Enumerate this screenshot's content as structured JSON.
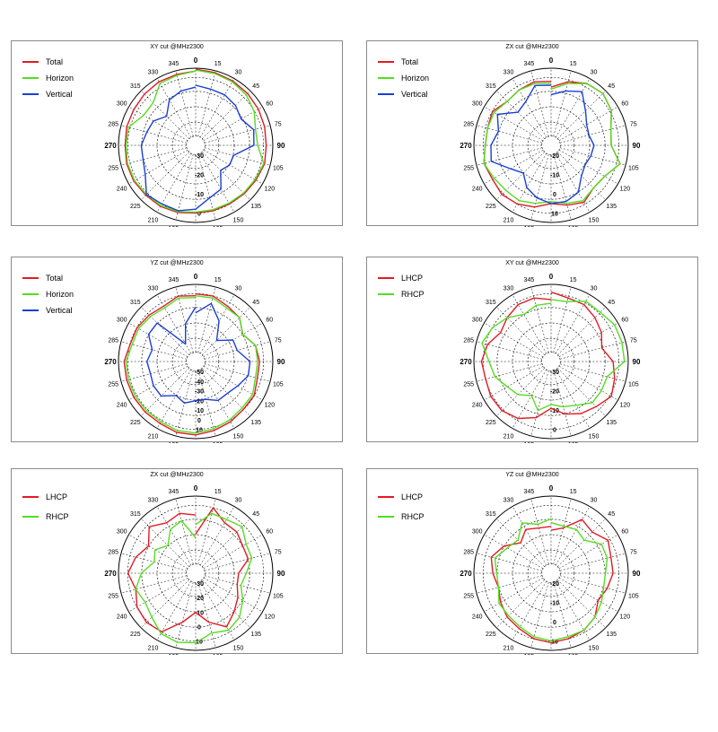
{
  "chart_data": [
    {
      "type": "polar",
      "title": "XY cut @MHz2300",
      "rings": [
        "-30",
        "-20",
        "-10",
        "0"
      ],
      "legend_position": "top-left",
      "series": [
        {
          "name": "Total",
          "color": "#e01b24",
          "values": [
            -0.5,
            -1,
            -1.5,
            -2,
            -2.5,
            -3,
            -3.5,
            -3,
            -4,
            -4.5,
            -5,
            -5,
            -5,
            -4,
            -3.5,
            -3.5,
            -3,
            -3,
            -3.5,
            -3,
            -3,
            -2.5,
            -2,
            -2,
            -1.5
          ]
        },
        {
          "name": "Horizon",
          "color": "#55dd22",
          "values": [
            -1,
            -1.5,
            -2,
            -3,
            -5,
            -8,
            -8,
            -3.5,
            -4.5,
            -5,
            -5.5,
            -5.5,
            -5.5,
            -4.5,
            -4,
            -4,
            -3.5,
            -3.5,
            -4,
            -4,
            -9,
            -9,
            -3,
            -2.5,
            -1.5
          ]
        },
        {
          "name": "Vertical",
          "color": "#1a3fd4",
          "values": [
            -9,
            -10,
            -10,
            -11,
            -13,
            -9,
            -10,
            -20,
            -20,
            -22,
            -14,
            -12,
            -7,
            -5,
            -5,
            -4,
            -10,
            -12,
            -12,
            -14,
            -15,
            -19,
            -13,
            -11,
            -10
          ]
        }
      ]
    },
    {
      "type": "polar",
      "title": "ZX cut @MHz2300",
      "rings": [
        "-20",
        "-10",
        "0",
        "10"
      ],
      "legend_position": "top-left",
      "series": [
        {
          "name": "Total",
          "color": "#e01b24",
          "values": [
            -10,
            -6,
            -3,
            -2,
            -4,
            -8,
            -9,
            -3,
            -8,
            -9,
            -6,
            -8,
            -10,
            -7,
            -5,
            -4,
            -5,
            -4,
            -6,
            -6,
            -5,
            -8,
            -7,
            -6,
            -7
          ]
        },
        {
          "name": "Horizon",
          "color": "#55dd22",
          "values": [
            -11,
            -7,
            -3,
            -2,
            -4,
            -8,
            -9,
            -3,
            -8,
            -9,
            -7,
            -9,
            -11,
            -9,
            -7,
            -7,
            -6,
            -4,
            -6,
            -6,
            -6,
            -8,
            -7,
            -7,
            -8
          ]
        },
        {
          "name": "Vertical",
          "color": "#1a3fd4",
          "values": [
            -14,
            -11,
            -8,
            -15,
            -19,
            -20,
            -18,
            -19,
            -20,
            -18,
            -12,
            -10,
            -10,
            -12,
            -15,
            -20,
            -16,
            -8,
            -9,
            -12,
            -8,
            -16,
            -14,
            -8,
            -9
          ]
        }
      ]
    },
    {
      "type": "polar",
      "title": "YZ cut @MHz2300",
      "rings": [
        "-50",
        "-40",
        "-30",
        "-20",
        "-10",
        "0",
        "10"
      ],
      "legend_position": "top-left",
      "series": [
        {
          "name": "Total",
          "color": "#e01b24",
          "values": [
            -5,
            -5,
            -7,
            -8,
            -12,
            -8,
            -7,
            -7,
            -5,
            -5,
            -4,
            -3,
            -2,
            -2,
            -3,
            -3,
            -3,
            -3,
            -3,
            -5,
            -5,
            -6,
            -7,
            -5,
            -6
          ]
        },
        {
          "name": "Horizon",
          "color": "#55dd22",
          "values": [
            -6,
            -6,
            -8,
            -8,
            -12,
            -8,
            -8,
            -8,
            -6,
            -6,
            -5,
            -4,
            -3,
            -3,
            -4,
            -4,
            -4,
            -4,
            -4,
            -6,
            -6,
            -7,
            -8,
            -6,
            -7
          ]
        },
        {
          "name": "Vertical",
          "color": "#1a3fd4",
          "values": [
            -15,
            -9,
            -16,
            -25,
            -18,
            -18,
            -12,
            -12,
            -15,
            -17,
            -17,
            -20,
            -20,
            -18,
            -20,
            -15,
            -15,
            -16,
            -15,
            -17,
            -12,
            -12,
            -30,
            -20,
            -12
          ]
        }
      ]
    },
    {
      "type": "polar",
      "title": "XY cut @MHz2300",
      "rings": [
        "-30",
        "-20",
        "-10",
        "0"
      ],
      "legend_position": "top-left",
      "series": [
        {
          "name": "LHCP",
          "color": "#e01b24",
          "values": [
            -4,
            -6,
            -6,
            -8,
            -10,
            -13,
            -8,
            -6,
            -4,
            -7,
            -9,
            -12,
            -16,
            -10,
            -6,
            -4,
            -4,
            -5,
            -4,
            -6,
            -10,
            -8,
            -6,
            -6,
            -8
          ]
        },
        {
          "name": "RHCP",
          "color": "#55dd22",
          "values": [
            -8,
            -8,
            -4,
            -4,
            -2,
            -2,
            -2,
            -10,
            -10,
            -10,
            -14,
            -16,
            -18,
            -14,
            -20,
            -16,
            -14,
            -10,
            -8,
            -3,
            -5,
            -8,
            -12,
            -10,
            -10
          ]
        }
      ]
    },
    {
      "type": "polar",
      "title": "ZX cut @MHz2300",
      "rings": [
        "-30",
        "-20",
        "-10",
        "0",
        "10"
      ],
      "legend_position": "top-left",
      "series": [
        {
          "name": "LHCP",
          "color": "#e01b24",
          "values": [
            -20,
            -5,
            -10,
            -10,
            -12,
            -12,
            -18,
            -18,
            -15,
            -12,
            -8,
            -14,
            -20,
            -14,
            -5,
            -4,
            -5,
            -8,
            -5,
            -8,
            -12,
            -6,
            -10,
            -8,
            -10
          ]
        },
        {
          "name": "RHCP",
          "color": "#55dd22",
          "values": [
            -15,
            -8,
            -8,
            -6,
            -10,
            -10,
            -14,
            -16,
            -12,
            -8,
            -6,
            -8,
            -4,
            -3,
            -4,
            -8,
            -10,
            -8,
            -12,
            -18,
            -16,
            -20,
            -14,
            -12,
            -22
          ]
        }
      ]
    },
    {
      "type": "polar",
      "title": "YZ cut @MHz2300",
      "rings": [
        "-20",
        "-10",
        "0",
        "10"
      ],
      "legend_position": "top-left",
      "series": [
        {
          "name": "LHCP",
          "color": "#e01b24",
          "values": [
            -18,
            -16,
            -8,
            -10,
            -6,
            -8,
            -8,
            -10,
            -12,
            -8,
            -6,
            -5,
            -4,
            -5,
            -7,
            -8,
            -10,
            -12,
            -10,
            -8,
            -12,
            -18,
            -14,
            -16,
            -16
          ]
        },
        {
          "name": "RHCP",
          "color": "#55dd22",
          "values": [
            -14,
            -15,
            -14,
            -16,
            -10,
            -10,
            -12,
            -12,
            -10,
            -8,
            -6,
            -6,
            -5,
            -6,
            -8,
            -9,
            -9,
            -12,
            -12,
            -10,
            -14,
            -16,
            -10,
            -14,
            -12
          ]
        }
      ]
    }
  ]
}
